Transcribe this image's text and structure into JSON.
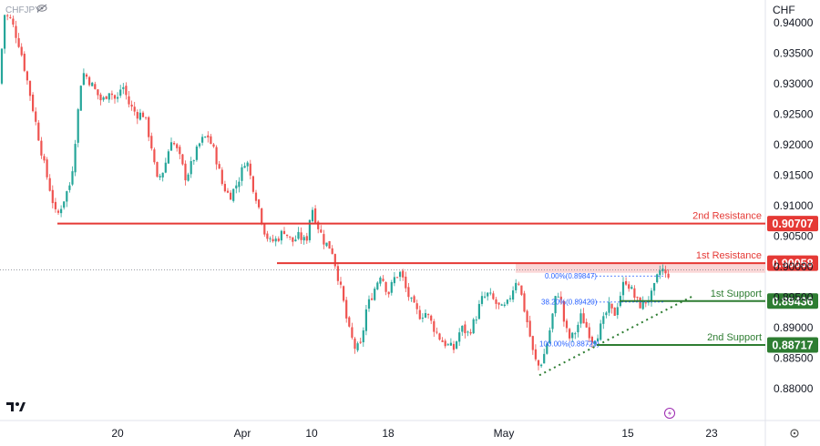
{
  "symbol_text": "CHFJPY",
  "currency": "CHF",
  "x_labels": [
    "20",
    "Apr",
    "10",
    "18",
    "May",
    "15",
    "23"
  ],
  "colors": {
    "up": "#26a69a",
    "down": "#ef5350",
    "resistance": "#e53935",
    "support": "#2e7d32",
    "fib": "#2962ff",
    "zone": "#f8c9c9"
  },
  "chart_data": {
    "type": "candlestick",
    "ylim": [
      0.8775,
      0.9425
    ],
    "y_ticks": [
      "0.94000",
      "0.93500",
      "0.93000",
      "0.92500",
      "0.92000",
      "0.91500",
      "0.91000",
      "0.90500",
      "0.90000",
      "0.89500",
      "0.89000",
      "0.88500",
      "0.88000"
    ],
    "y_tick_values": [
      0.94,
      0.935,
      0.93,
      0.925,
      0.92,
      0.915,
      0.91,
      0.905,
      0.9,
      0.895,
      0.89,
      0.885,
      0.88
    ],
    "x_tick_labels": [
      "20",
      "Apr",
      "10",
      "18",
      "May",
      "15",
      "23"
    ],
    "levels": [
      {
        "label": "2nd Resistance",
        "value": "0.90707",
        "price": 0.90707,
        "kind": "resistance"
      },
      {
        "label": "1st Resistance",
        "value": "0.90058",
        "price": 0.90058,
        "kind": "resistance"
      },
      {
        "label": "1st Support",
        "value": "0.89436",
        "price": 0.89436,
        "kind": "support"
      },
      {
        "label": "2nd Support",
        "value": "0.88717",
        "price": 0.88717,
        "kind": "support"
      }
    ],
    "fib_levels": [
      {
        "label": "0.00%(0.89847)",
        "price": 0.89847
      },
      {
        "label": "38.20%(0.89420)",
        "price": 0.8942
      },
      {
        "label": "100.00%(0.88729)",
        "price": 0.88729
      }
    ],
    "resistance_zone": [
      0.899,
      0.90058
    ],
    "trendline": {
      "from": 0.8822,
      "to": 0.8953
    },
    "current_price": 0.8995,
    "price_path": [
      [
        0,
        0.93
      ],
      [
        4,
        0.9415
      ],
      [
        12,
        0.9405
      ],
      [
        22,
        0.936
      ],
      [
        32,
        0.929
      ],
      [
        40,
        0.923
      ],
      [
        48,
        0.917
      ],
      [
        56,
        0.912
      ],
      [
        62,
        0.908
      ],
      [
        70,
        0.911
      ],
      [
        78,
        0.914
      ],
      [
        84,
        0.923
      ],
      [
        90,
        0.932
      ],
      [
        96,
        0.931
      ],
      [
        104,
        0.929
      ],
      [
        112,
        0.927
      ],
      [
        120,
        0.929
      ],
      [
        128,
        0.927
      ],
      [
        134,
        0.93
      ],
      [
        142,
        0.9265
      ],
      [
        150,
        0.925
      ],
      [
        158,
        0.925
      ],
      [
        166,
        0.92
      ],
      [
        172,
        0.914
      ],
      [
        180,
        0.916
      ],
      [
        188,
        0.921
      ],
      [
        196,
        0.9185
      ],
      [
        204,
        0.9145
      ],
      [
        212,
        0.9175
      ],
      [
        220,
        0.9205
      ],
      [
        228,
        0.9215
      ],
      [
        236,
        0.9185
      ],
      [
        244,
        0.9135
      ],
      [
        252,
        0.9115
      ],
      [
        258,
        0.913
      ],
      [
        264,
        0.915
      ],
      [
        270,
        0.918
      ],
      [
        276,
        0.914
      ],
      [
        282,
        0.911
      ],
      [
        290,
        0.906
      ],
      [
        296,
        0.904
      ],
      [
        304,
        0.9045
      ],
      [
        312,
        0.906
      ],
      [
        320,
        0.904
      ],
      [
        328,
        0.905
      ],
      [
        336,
        0.904
      ],
      [
        342,
        0.91
      ],
      [
        348,
        0.907
      ],
      [
        356,
        0.904
      ],
      [
        364,
        0.903
      ],
      [
        370,
        0.899
      ],
      [
        376,
        0.895
      ],
      [
        382,
        0.89
      ],
      [
        390,
        0.8865
      ],
      [
        396,
        0.887
      ],
      [
        402,
        0.893
      ],
      [
        410,
        0.896
      ],
      [
        418,
        0.899
      ],
      [
        426,
        0.8955
      ],
      [
        434,
        0.8985
      ],
      [
        440,
        0.899
      ],
      [
        446,
        0.896
      ],
      [
        452,
        0.894
      ],
      [
        460,
        0.892
      ],
      [
        468,
        0.8925
      ],
      [
        476,
        0.89
      ],
      [
        484,
        0.888
      ],
      [
        492,
        0.887
      ],
      [
        498,
        0.8865
      ],
      [
        506,
        0.89
      ],
      [
        514,
        0.889
      ],
      [
        522,
        0.8915
      ],
      [
        528,
        0.8945
      ],
      [
        536,
        0.8955
      ],
      [
        544,
        0.894
      ],
      [
        550,
        0.893
      ],
      [
        556,
        0.8935
      ],
      [
        562,
        0.896
      ],
      [
        568,
        0.8985
      ],
      [
        574,
        0.894
      ],
      [
        580,
        0.89
      ],
      [
        586,
        0.885
      ],
      [
        592,
        0.8835
      ],
      [
        598,
        0.886
      ],
      [
        604,
        0.89
      ],
      [
        610,
        0.895
      ],
      [
        614,
        0.896
      ],
      [
        620,
        0.89
      ],
      [
        626,
        0.888
      ],
      [
        632,
        0.8895
      ],
      [
        638,
        0.892
      ],
      [
        644,
        0.89
      ],
      [
        650,
        0.888
      ],
      [
        656,
        0.889
      ],
      [
        662,
        0.891
      ],
      [
        668,
        0.8935
      ],
      [
        674,
        0.892
      ],
      [
        680,
        0.895
      ],
      [
        686,
        0.898
      ],
      [
        692,
        0.8965
      ],
      [
        698,
        0.8945
      ],
      [
        704,
        0.8935
      ],
      [
        710,
        0.8945
      ],
      [
        716,
        0.8955
      ],
      [
        722,
        0.8985
      ],
      [
        726,
        0.9
      ],
      [
        730,
        0.8985
      ],
      [
        736,
        0.899
      ]
    ]
  }
}
